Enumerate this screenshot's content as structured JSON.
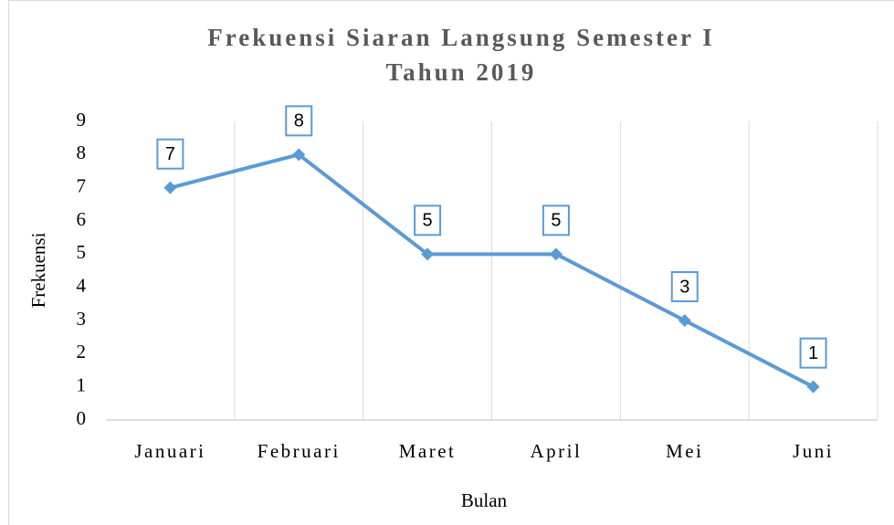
{
  "chart_data": {
    "type": "line",
    "title": [
      "Frekuensi Siaran Langsung Semester I",
      "Tahun 2019"
    ],
    "x_label": "Bulan",
    "y_label": "Frekuensi",
    "categories": [
      "Januari",
      "Februari",
      "Maret",
      "April",
      "Mei",
      "Juni"
    ],
    "series": [
      {
        "name": "Frekuensi",
        "color": "#5b9bd5",
        "values": [
          7,
          8,
          5,
          5,
          3,
          1
        ]
      }
    ],
    "ylim": [
      0,
      9
    ],
    "yticks": [
      0,
      1,
      2,
      3,
      4,
      5,
      6,
      7,
      8,
      9
    ],
    "grid": true,
    "data_labels": true
  }
}
